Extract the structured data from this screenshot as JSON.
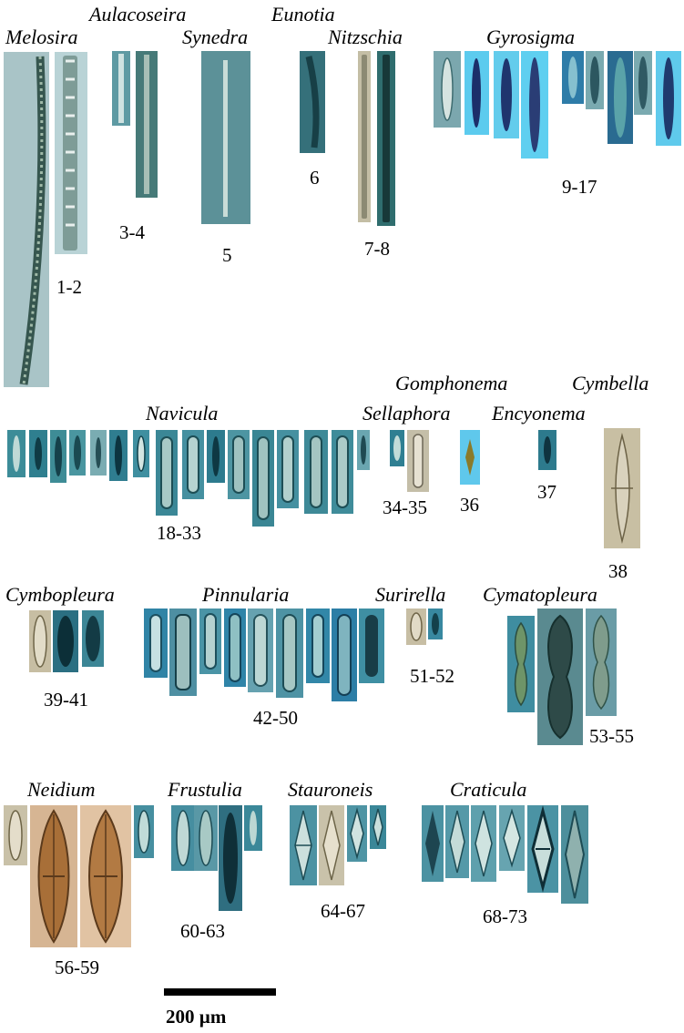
{
  "genera": [
    {
      "name": "Melosira",
      "numbers": "1-2"
    },
    {
      "name": "Aulacoseira",
      "numbers": "3-4"
    },
    {
      "name": "Synedra",
      "numbers": "5"
    },
    {
      "name": "Eunotia",
      "numbers": "6"
    },
    {
      "name": "Nitzschia",
      "numbers": "7-8"
    },
    {
      "name": "Gyrosigma",
      "numbers": "9-17"
    },
    {
      "name": "Navicula",
      "numbers": "18-33"
    },
    {
      "name": "Gomphonema",
      "numbers": ""
    },
    {
      "name": "Sellaphora",
      "numbers": "34-35"
    },
    {
      "name": "Cymbella",
      "numbers": "38"
    },
    {
      "name": "Encyonema",
      "numbers": "37"
    },
    {
      "name": "",
      "numbers": "36"
    },
    {
      "name": "Cymbopleura",
      "numbers": "39-41"
    },
    {
      "name": "Pinnularia",
      "numbers": "42-50"
    },
    {
      "name": "Surirella",
      "numbers": "51-52"
    },
    {
      "name": "Cymatopleura",
      "numbers": "53-55"
    },
    {
      "name": "Neidium",
      "numbers": "56-59"
    },
    {
      "name": "Frustulia",
      "numbers": "60-63"
    },
    {
      "name": "Stauroneis",
      "numbers": "64-67"
    },
    {
      "name": "Craticula",
      "numbers": "68-73"
    }
  ],
  "scale_bar": {
    "label": "200  µm"
  },
  "colors": {
    "teal_background": "#3f8fa2",
    "cyan_background": "#5fc8e8",
    "beige_background": "#c8bfa3",
    "brown_cell": "#a86f38"
  }
}
